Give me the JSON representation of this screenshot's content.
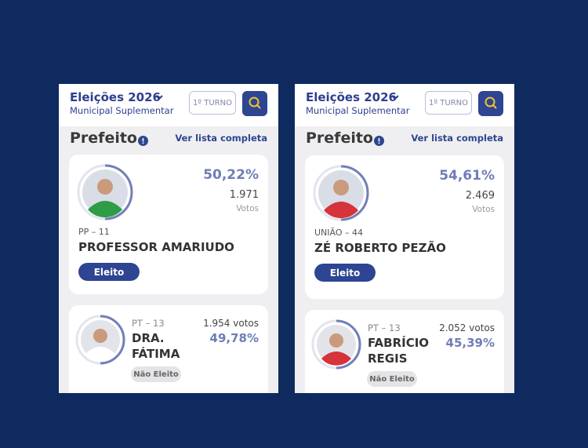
{
  "panels": [
    {
      "header": {
        "title": "Eleições 2026",
        "subtitle": "Municipal Suplementar",
        "turno": "1º TURNO"
      },
      "section": {
        "title": "Prefeito",
        "link": "Ver lista completa"
      },
      "winner": {
        "percent": "50,22%",
        "votes": "1.971",
        "votes_label": "Votos",
        "party": "PP – 11",
        "name": "PROFESSOR AMARIUDO",
        "status": "Eleito"
      },
      "runner": {
        "party": "PT – 13",
        "name": [
          "DRA.",
          "FÁTIMA"
        ],
        "votes": "1.954 votos",
        "percent": "49,78%",
        "status": "Não Eleito"
      }
    },
    {
      "header": {
        "title": "Eleições 2026",
        "subtitle": "Municipal Suplementar",
        "turno": "1º TURNO"
      },
      "section": {
        "title": "Prefeito",
        "link": "Ver lista completa"
      },
      "winner": {
        "percent": "54,61%",
        "votes": "2.469",
        "votes_label": "Votos",
        "party": "UNIÃO – 44",
        "name": "ZÉ ROBERTO PEZÃO",
        "status": "Eleito"
      },
      "runner": {
        "party": "PT – 13",
        "name": [
          "FABRÍCIO",
          "REGIS"
        ],
        "votes": "2.052 votos",
        "percent": "45,39%",
        "status": "Não Eleito"
      }
    }
  ]
}
